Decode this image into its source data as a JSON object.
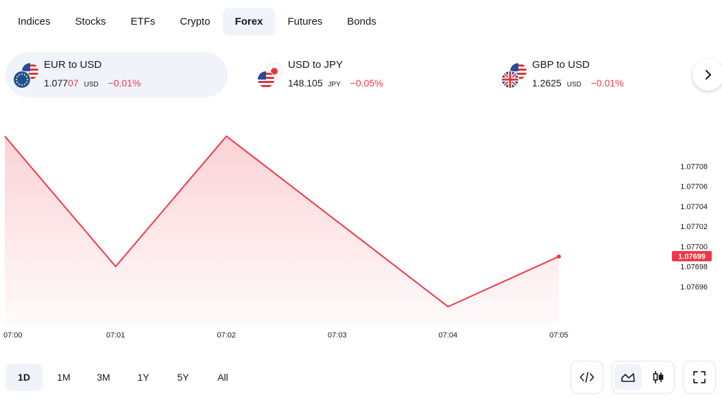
{
  "tabs": [
    {
      "label": "Indices",
      "active": false
    },
    {
      "label": "Stocks",
      "active": false
    },
    {
      "label": "ETFs",
      "active": false
    },
    {
      "label": "Crypto",
      "active": false
    },
    {
      "label": "Forex",
      "active": true
    },
    {
      "label": "Futures",
      "active": false
    },
    {
      "label": "Bonds",
      "active": false
    }
  ],
  "tickers": [
    {
      "name": "EUR to USD",
      "price_main": "1.077",
      "price_highlight": "07",
      "unit": "USD",
      "change": "−0.01%",
      "flag": "eur-usd-flag-icon",
      "active": true
    },
    {
      "name": "USD to JPY",
      "price_main": "148.105",
      "price_highlight": "",
      "unit": "JPY",
      "change": "−0.05%",
      "flag": "usd-jpy-flag-icon",
      "active": false
    },
    {
      "name": "GBP to USD",
      "price_main": "1.2625",
      "price_highlight": "",
      "unit": "USD",
      "change": "−0.01%",
      "flag": "gbp-usd-flag-icon",
      "active": false
    }
  ],
  "next_icon": "chevron-right-icon",
  "chart_data": {
    "type": "area",
    "x": [
      "07:00",
      "07:01",
      "07:02",
      "07:03",
      "07:04",
      "07:05"
    ],
    "x_numeric": [
      0,
      1,
      2,
      3,
      4,
      5
    ],
    "points": [
      {
        "x": 0,
        "y": 1.07711
      },
      {
        "x": 1,
        "y": 1.07698
      },
      {
        "x": 2,
        "y": 1.07711
      },
      {
        "x": 4,
        "y": 1.07694
      },
      {
        "x": 5,
        "y": 1.07699
      }
    ],
    "y_ticks": [
      1.07696,
      1.07698,
      1.077,
      1.07702,
      1.07704,
      1.07706,
      1.07708
    ],
    "y_tick_labels": [
      "1.07696",
      "1.07698",
      "1.07700",
      "1.07702",
      "1.07704",
      "1.07706",
      "1.07708"
    ],
    "last_value_label": "1.07699",
    "ylim": [
      1.076925,
      1.07712
    ],
    "color": "#f23645",
    "grid": false
  },
  "ranges": [
    {
      "label": "1D",
      "active": true
    },
    {
      "label": "1M",
      "active": false
    },
    {
      "label": "3M",
      "active": false
    },
    {
      "label": "1Y",
      "active": false
    },
    {
      "label": "5Y",
      "active": false
    },
    {
      "label": "All",
      "active": false
    }
  ],
  "tools": {
    "embed_icon": "code-icon",
    "area_icon": "area-chart-icon",
    "candles_icon": "candlestick-icon",
    "fullscreen_icon": "fullscreen-icon"
  }
}
